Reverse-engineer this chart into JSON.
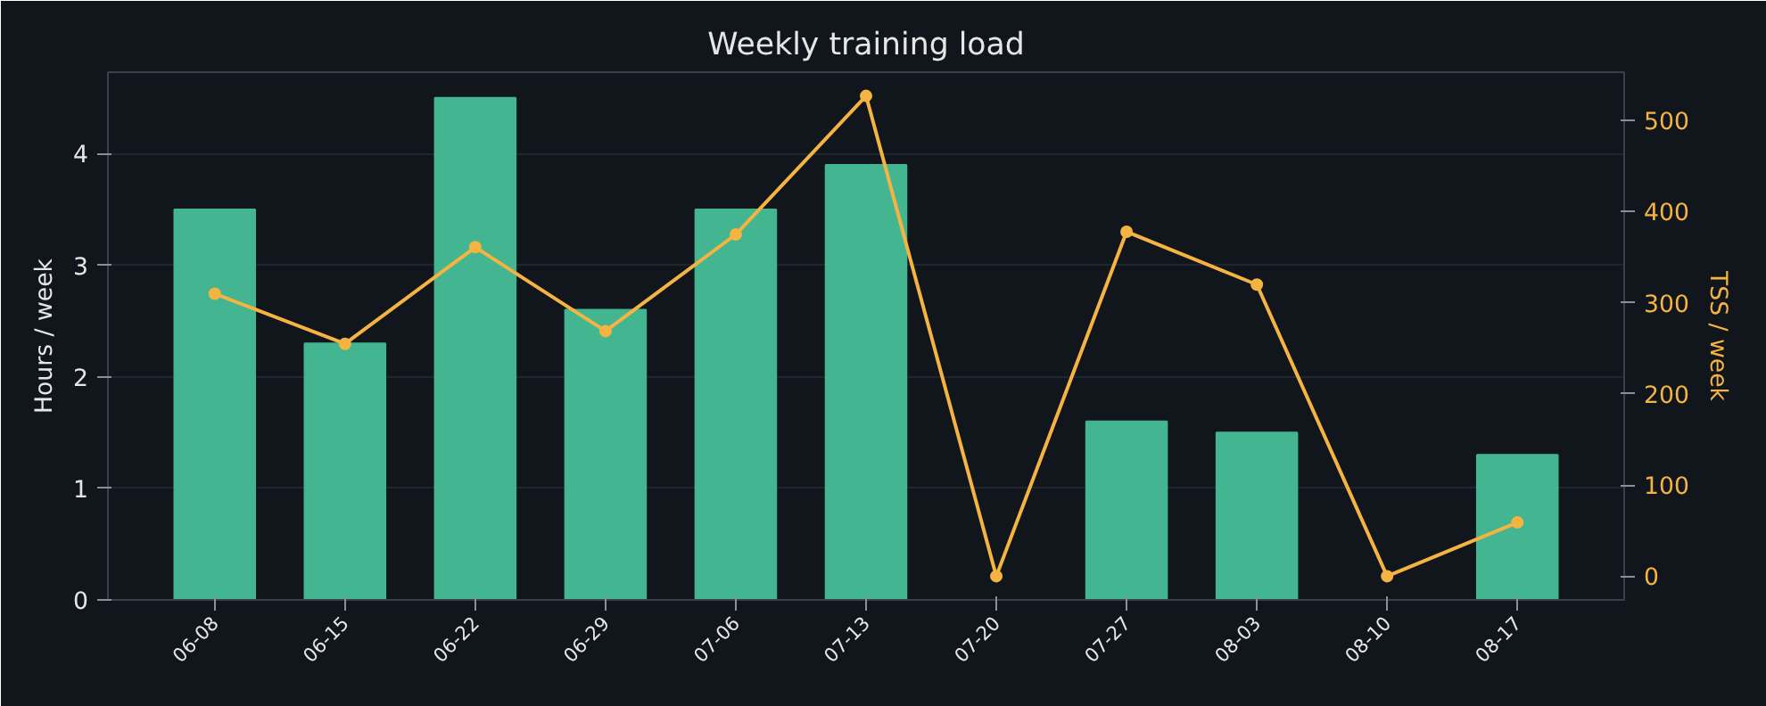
{
  "chart_data": {
    "type": "bar",
    "title": "Weekly training load",
    "ylabel": "Hours / week",
    "y2label": "TSS / week",
    "categories": [
      "06-08",
      "06-15",
      "06-22",
      "06-29",
      "07-06",
      "07-13",
      "07-20",
      "07-27",
      "08-03",
      "08-10",
      "08-17"
    ],
    "series": [
      {
        "name": null,
        "color": "#43b590",
        "values": [
          3.5,
          2.3,
          4.5,
          2.6,
          3.5,
          3.9,
          0,
          1.6,
          1.5,
          0,
          1.3
        ]
      },
      {
        "name": null,
        "type": "line",
        "axis": "y2",
        "color": "#f5b342",
        "marker": "circle",
        "values": [
          310,
          255,
          361,
          269,
          375,
          527,
          0,
          378,
          320,
          0,
          59
        ]
      }
    ],
    "ylim": [
      0,
      4.73
    ],
    "yticks": [
      0,
      1,
      2,
      3,
      4
    ],
    "y2lim": [
      -26,
      553
    ],
    "y2ticks": [
      0,
      100,
      200,
      300,
      400,
      500
    ],
    "grid": "y"
  }
}
